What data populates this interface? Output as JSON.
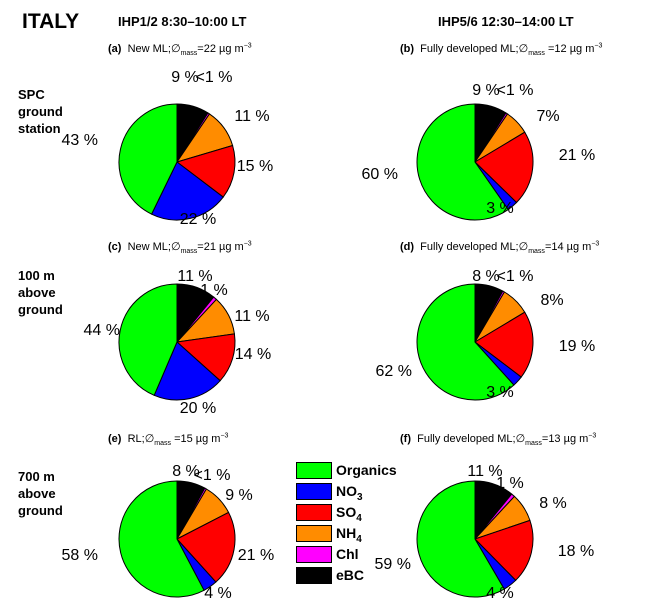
{
  "header": {
    "country": "ITALY",
    "col1": "IHP1/2 8:30–10:00 LT",
    "col2": "IHP5/6 12:30–14:00 LT"
  },
  "rows": [
    {
      "label": [
        "SPC",
        "ground",
        "station"
      ]
    },
    {
      "label": [
        "100 m",
        "above",
        "ground"
      ]
    },
    {
      "label": [
        "700 m",
        "above",
        "ground"
      ]
    }
  ],
  "captions": [
    {
      "letter": "(a)",
      "text": "New ML;∅",
      "sub": "mass",
      "value": "=22 µg m",
      "sup": "−3"
    },
    {
      "letter": "(b)",
      "text": "Fully developed ML;∅",
      "sub": "mass",
      "value": " =12 µg m",
      "sup": "−3"
    },
    {
      "letter": "(c)",
      "text": "New ML;∅",
      "sub": "mass",
      "value": "=21 µg m",
      "sup": "−3"
    },
    {
      "letter": "(d)",
      "text": "Fully developed ML;∅",
      "sub": "mass",
      "value": "=14 µg m",
      "sup": "−3"
    },
    {
      "letter": "(e)",
      "text": "RL;∅",
      "sub": "mass",
      "value": " =15 µg m",
      "sup": "−3"
    },
    {
      "letter": "(f)",
      "text": "Fully developed ML;∅",
      "sub": "mass",
      "value": "=13 µg m",
      "sup": "−3"
    }
  ],
  "legend": [
    {
      "name": "Organics",
      "color": "#00ff00"
    },
    {
      "name": "NO3",
      "color": "#0000ff"
    },
    {
      "name": "SO4",
      "color": "#ff0000"
    },
    {
      "name": "NH4",
      "color": "#ff8c00"
    },
    {
      "name": "Chl",
      "color": "#ff00ff"
    },
    {
      "name": "eBC",
      "color": "#000000"
    }
  ],
  "chart_data": [
    {
      "type": "pie",
      "id": "a",
      "series": [
        {
          "name": "eBC",
          "value": 9,
          "label": "9 %"
        },
        {
          "name": "Chl",
          "value": 0.5,
          "label": "<1 %"
        },
        {
          "name": "NH4",
          "value": 11,
          "label": "11 %"
        },
        {
          "name": "SO4",
          "value": 15,
          "label": "15 %"
        },
        {
          "name": "NO3",
          "value": 22,
          "label": "22 %"
        },
        {
          "name": "Organics",
          "value": 43,
          "label": "43 %"
        }
      ]
    },
    {
      "type": "pie",
      "id": "b",
      "series": [
        {
          "name": "eBC",
          "value": 9,
          "label": "9 %"
        },
        {
          "name": "Chl",
          "value": 0.5,
          "label": "<1 %"
        },
        {
          "name": "NH4",
          "value": 7,
          "label": "7%"
        },
        {
          "name": "SO4",
          "value": 21,
          "label": "21 %"
        },
        {
          "name": "NO3",
          "value": 3,
          "label": "3 %"
        },
        {
          "name": "Organics",
          "value": 60,
          "label": "60 %"
        }
      ]
    },
    {
      "type": "pie",
      "id": "c",
      "series": [
        {
          "name": "eBC",
          "value": 11,
          "label": "11 %"
        },
        {
          "name": "Chl",
          "value": 1,
          "label": "1 %"
        },
        {
          "name": "NH4",
          "value": 11,
          "label": "11 %"
        },
        {
          "name": "SO4",
          "value": 14,
          "label": "14 %"
        },
        {
          "name": "NO3",
          "value": 20,
          "label": "20 %"
        },
        {
          "name": "Organics",
          "value": 44,
          "label": "44 %"
        }
      ]
    },
    {
      "type": "pie",
      "id": "d",
      "series": [
        {
          "name": "eBC",
          "value": 8,
          "label": "8 %"
        },
        {
          "name": "Chl",
          "value": 0.5,
          "label": "<1 %"
        },
        {
          "name": "NH4",
          "value": 8,
          "label": "8%"
        },
        {
          "name": "SO4",
          "value": 19,
          "label": "19 %"
        },
        {
          "name": "NO3",
          "value": 3,
          "label": "3 %"
        },
        {
          "name": "Organics",
          "value": 62,
          "label": "62 %"
        }
      ]
    },
    {
      "type": "pie",
      "id": "e",
      "series": [
        {
          "name": "eBC",
          "value": 8,
          "label": "8 %"
        },
        {
          "name": "Chl",
          "value": 0.5,
          "label": "<1 %"
        },
        {
          "name": "NH4",
          "value": 9,
          "label": "9 %"
        },
        {
          "name": "SO4",
          "value": 21,
          "label": "21 %"
        },
        {
          "name": "NO3",
          "value": 4,
          "label": "4 %"
        },
        {
          "name": "Organics",
          "value": 58,
          "label": "58 %"
        }
      ]
    },
    {
      "type": "pie",
      "id": "f",
      "series": [
        {
          "name": "eBC",
          "value": 11,
          "label": "11 %"
        },
        {
          "name": "Chl",
          "value": 1,
          "label": "1 %"
        },
        {
          "name": "NH4",
          "value": 8,
          "label": "8 %"
        },
        {
          "name": "SO4",
          "value": 18,
          "label": "18 %"
        },
        {
          "name": "NO3",
          "value": 4,
          "label": "4 %"
        },
        {
          "name": "Organics",
          "value": 59,
          "label": "59 %"
        }
      ]
    }
  ]
}
